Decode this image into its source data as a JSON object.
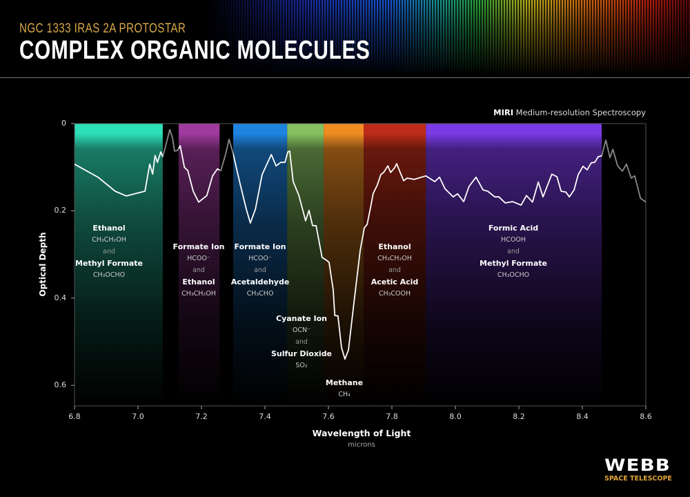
{
  "header": {
    "subtitle": "NGC 1333 IRAS 2A PROTOSTAR",
    "title": "COMPLEX ORGANIC MOLECULES"
  },
  "instrument": {
    "bold": "MIRI",
    "rest": "Medium-resolution Spectroscopy"
  },
  "logo": {
    "name": "WEBB",
    "tagline": "SPACE TELESCOPE"
  },
  "chart_data": {
    "type": "line",
    "title": "",
    "xlabel": "Wavelength of Light",
    "xunit": "microns",
    "ylabel": "Optical Depth",
    "xlim": [
      6.8,
      8.6
    ],
    "ylim": [
      0,
      0.65
    ],
    "y_inverted": true,
    "grid": false,
    "xticks": [
      "6.8",
      "7.0",
      "7.2",
      "7.4",
      "7.6",
      "7.8",
      "8.0",
      "8.2",
      "8.4",
      "8.6"
    ],
    "yticks": [
      "0",
      "0.2",
      "0.4",
      "0.6"
    ],
    "x": [
      6.8,
      6.874,
      6.928,
      6.963,
      7.022,
      7.037,
      7.046,
      7.054,
      7.061,
      7.072,
      7.078,
      7.087,
      7.1,
      7.109,
      7.115,
      7.124,
      7.133,
      7.146,
      7.157,
      7.174,
      7.191,
      7.217,
      7.235,
      7.25,
      7.261,
      7.276,
      7.287,
      7.3,
      7.32,
      7.341,
      7.354,
      7.37,
      7.391,
      7.42,
      7.435,
      7.45,
      7.463,
      7.472,
      7.478,
      7.489,
      7.507,
      7.528,
      7.539,
      7.55,
      7.561,
      7.58,
      7.593,
      7.602,
      7.615,
      7.62,
      7.63,
      7.641,
      7.652,
      7.663,
      7.68,
      7.7,
      7.713,
      7.722,
      7.733,
      7.741,
      7.754,
      7.765,
      7.774,
      7.787,
      7.796,
      7.809,
      7.815,
      7.826,
      7.837,
      7.848,
      7.87,
      7.907,
      7.935,
      7.95,
      7.967,
      7.993,
      8.007,
      8.026,
      8.043,
      8.065,
      8.087,
      8.102,
      8.124,
      8.137,
      8.157,
      8.18,
      8.207,
      8.224,
      8.243,
      8.261,
      8.276,
      8.304,
      8.32,
      8.333,
      8.348,
      8.359,
      8.374,
      8.387,
      8.402,
      8.415,
      8.428,
      8.439,
      8.45,
      8.461,
      8.474,
      8.487,
      8.496,
      8.511,
      8.526,
      8.539,
      8.554,
      8.565,
      8.583,
      8.6
    ],
    "y": [
      0.093,
      0.123,
      0.155,
      0.166,
      0.155,
      0.093,
      0.116,
      0.073,
      0.089,
      0.065,
      0.076,
      0.052,
      0.014,
      0.033,
      0.063,
      0.062,
      0.051,
      0.1,
      0.108,
      0.155,
      0.18,
      0.165,
      0.12,
      0.104,
      0.108,
      0.07,
      0.036,
      0.07,
      0.133,
      0.196,
      0.228,
      0.196,
      0.117,
      0.071,
      0.097,
      0.089,
      0.089,
      0.065,
      0.063,
      0.133,
      0.165,
      0.223,
      0.199,
      0.234,
      0.234,
      0.307,
      0.313,
      0.318,
      0.381,
      0.44,
      0.441,
      0.513,
      0.54,
      0.519,
      0.413,
      0.291,
      0.239,
      0.231,
      0.191,
      0.16,
      0.141,
      0.117,
      0.112,
      0.097,
      0.112,
      0.101,
      0.092,
      0.112,
      0.131,
      0.125,
      0.128,
      0.12,
      0.133,
      0.123,
      0.149,
      0.168,
      0.161,
      0.179,
      0.144,
      0.123,
      0.152,
      0.155,
      0.168,
      0.168,
      0.182,
      0.179,
      0.187,
      0.165,
      0.18,
      0.134,
      0.168,
      0.116,
      0.122,
      0.155,
      0.157,
      0.168,
      0.152,
      0.117,
      0.098,
      0.106,
      0.09,
      0.089,
      0.076,
      0.074,
      0.038,
      0.078,
      0.059,
      0.097,
      0.109,
      0.093,
      0.125,
      0.12,
      0.171,
      0.18
    ],
    "bands": [
      {
        "range": [
          6.8,
          7.078
        ],
        "color": "#2de0b8",
        "labels": [
          {
            "name": "Ethanol",
            "formula": "CH₃CH₂OH"
          },
          {
            "name": "Methyl Formate",
            "formula": "CH₃OCHO"
          }
        ]
      },
      {
        "range": [
          7.128,
          7.257
        ],
        "color": "#a03a9e",
        "labels": [
          {
            "name": "Formate Ion",
            "formula": "HCOO⁻"
          },
          {
            "name": "Ethanol",
            "formula": "CH₃CH₂OH"
          }
        ]
      },
      {
        "range": [
          7.3,
          7.47
        ],
        "color": "#1e84e0",
        "labels": [
          {
            "name": "Formate Ion",
            "formula": "HCOO⁻"
          },
          {
            "name": "Acetaldehyde",
            "formula": "CH₃CHO"
          }
        ]
      },
      {
        "range": [
          7.47,
          7.585
        ],
        "color": "#86c060",
        "labels": [
          {
            "name": "Cyanate Ion",
            "formula": "OCN⁻"
          },
          {
            "name": "Sulfur Dioxide",
            "formula": "SO₂"
          }
        ]
      },
      {
        "range": [
          7.585,
          7.711
        ],
        "color": "#f08c22",
        "labels": [
          {
            "name": "Methane",
            "formula": "CH₄"
          }
        ]
      },
      {
        "range": [
          7.711,
          7.907
        ],
        "color": "#bc2c18",
        "labels": [
          {
            "name": "Ethanol",
            "formula": "CH₃CH₂OH"
          },
          {
            "name": "Acetic Acid",
            "formula": "CH₃COOH"
          }
        ]
      },
      {
        "range": [
          7.907,
          8.461
        ],
        "color": "#7a3ae6",
        "labels": [
          {
            "name": "Formic Acid",
            "formula": "HCOOH"
          },
          {
            "name": "Methyl Formate",
            "formula": "CH₃OCHO"
          }
        ]
      }
    ],
    "conjunction": "and",
    "line_color": "#ffffff",
    "gap_line_color": "#8a8a8a"
  }
}
